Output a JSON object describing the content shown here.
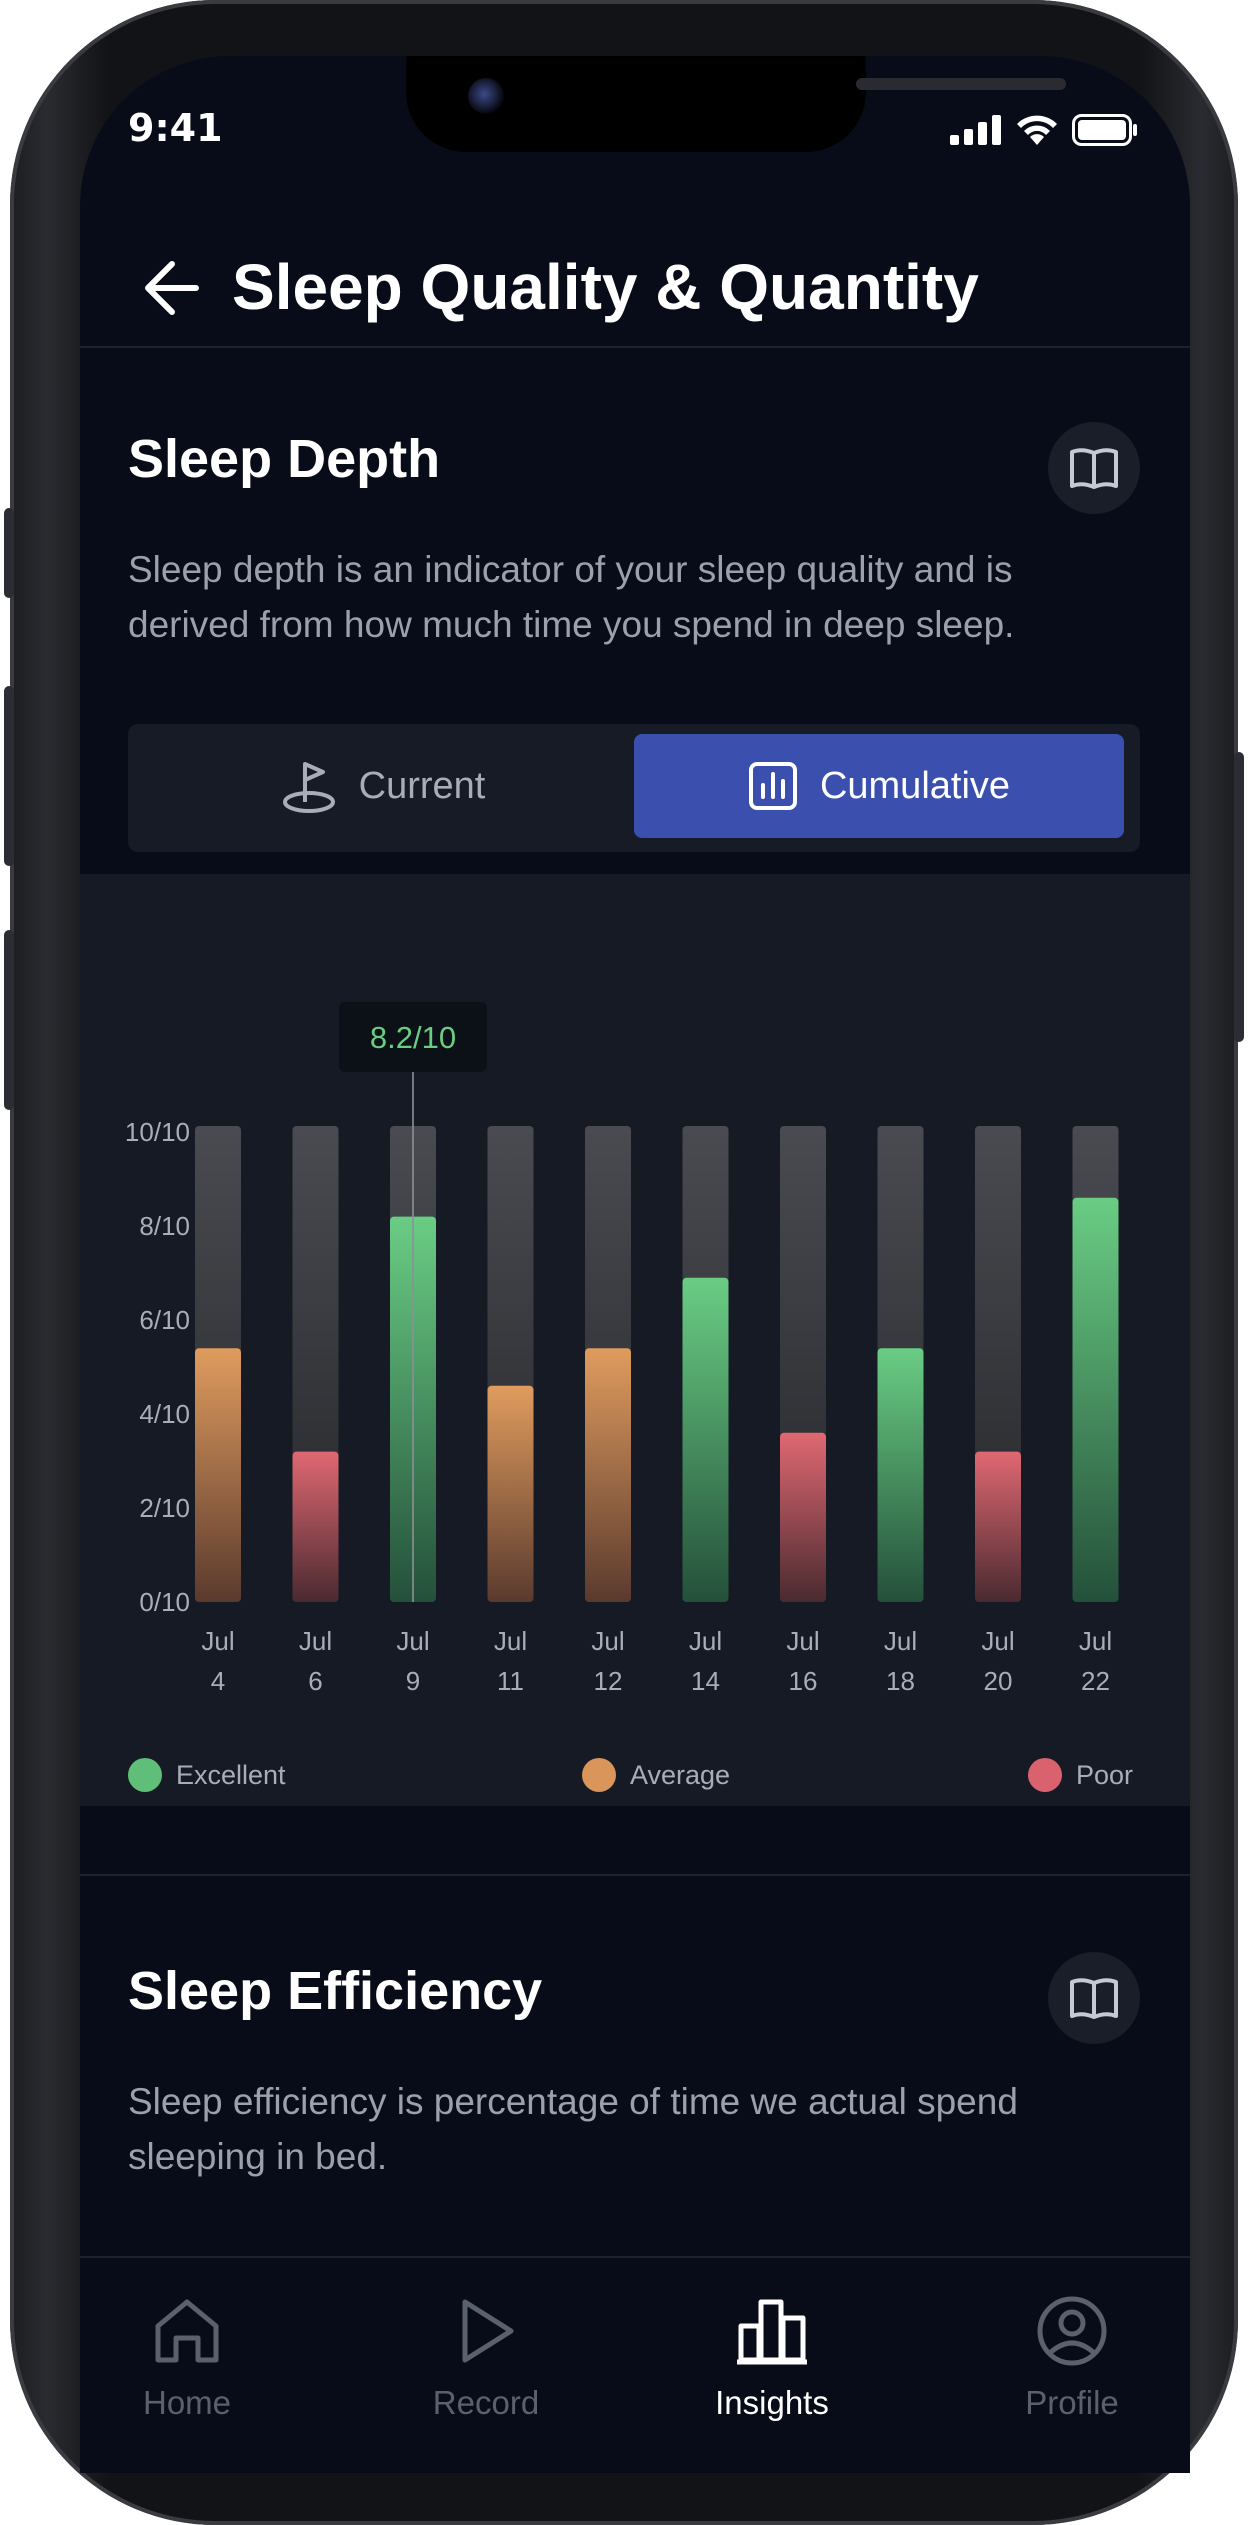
{
  "status_bar": {
    "time": "9:41"
  },
  "header": {
    "title": "Sleep Quality & Quantity"
  },
  "sleep_depth": {
    "title": "Sleep Depth",
    "description": "Sleep depth is an indicator of your sleep quality and is derived from how much time you spend in deep sleep.",
    "segmented": {
      "current_label": "Current",
      "cumulative_label": "Cumulative",
      "selected": "Cumulative"
    },
    "tooltip": "8.2/10",
    "legend": [
      {
        "label": "Excellent",
        "color": "#5fbf78"
      },
      {
        "label": "Average",
        "color": "#d9955a"
      },
      {
        "label": "Poor",
        "color": "#d9626e"
      }
    ]
  },
  "chart_data": {
    "type": "bar",
    "categories": [
      [
        "Jul",
        "4"
      ],
      [
        "Jul",
        "6"
      ],
      [
        "Jul",
        "9"
      ],
      [
        "Jul",
        "11"
      ],
      [
        "Jul",
        "12"
      ],
      [
        "Jul",
        "14"
      ],
      [
        "Jul",
        "16"
      ],
      [
        "Jul",
        "18"
      ],
      [
        "Jul",
        "20"
      ],
      [
        "Jul",
        "22"
      ]
    ],
    "values": [
      5.4,
      3.2,
      8.2,
      4.6,
      5.4,
      6.9,
      3.6,
      5.4,
      3.2,
      8.6
    ],
    "ratings": [
      "Average",
      "Poor",
      "Excellent",
      "Average",
      "Average",
      "Excellent",
      "Poor",
      "Excellent",
      "Poor",
      "Excellent"
    ],
    "y_ticks": [
      "0/10",
      "2/10",
      "4/10",
      "6/10",
      "8/10",
      "10/10"
    ],
    "ylim": [
      0,
      10
    ],
    "highlighted_index": 2,
    "colors": {
      "Excellent": "#5fbf78",
      "Average": "#d9955a",
      "Poor": "#d9626e",
      "track": "#3a3c41"
    }
  },
  "sleep_efficiency": {
    "title": "Sleep Efficiency",
    "description": "Sleep efficiency is percentage of time we actual spend sleeping in bed."
  },
  "tabbar": {
    "items": [
      {
        "label": "Home",
        "icon": "home-icon"
      },
      {
        "label": "Record",
        "icon": "play-icon"
      },
      {
        "label": "Insights",
        "icon": "bar-chart-icon"
      },
      {
        "label": "Profile",
        "icon": "profile-icon"
      }
    ],
    "active": "Insights"
  }
}
